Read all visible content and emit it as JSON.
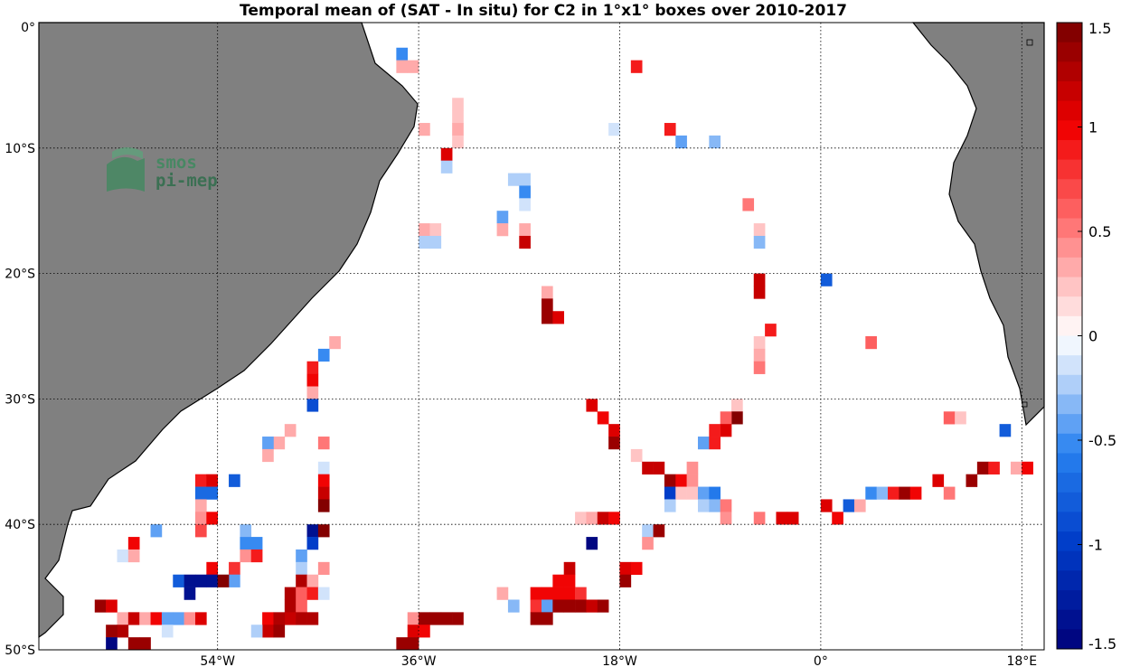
{
  "chart_data": {
    "type": "heatmap",
    "title": "Temporal mean of (SAT - In situ) for C2 in 1°x1° boxes over 2010-2017",
    "xlim": [
      -70,
      20
    ],
    "ylim": [
      -50,
      0
    ],
    "x_ticks": [
      {
        "value": -54,
        "label": "54°W"
      },
      {
        "value": -36,
        "label": "36°W"
      },
      {
        "value": -18,
        "label": "18°W"
      },
      {
        "value": 0,
        "label": "0°"
      },
      {
        "value": 18,
        "label": "18°E"
      }
    ],
    "y_ticks": [
      {
        "value": 0,
        "label": "0°"
      },
      {
        "value": -10,
        "label": "10°S"
      },
      {
        "value": -20,
        "label": "20°S"
      },
      {
        "value": -30,
        "label": "30°S"
      },
      {
        "value": -40,
        "label": "40°S"
      },
      {
        "value": -50,
        "label": "50°S"
      }
    ],
    "grid": true,
    "colorbar": {
      "range": [
        -1.5,
        1.5
      ],
      "levels": 32,
      "tick_values": [
        1.5,
        1,
        0.5,
        0,
        -0.5,
        -1,
        -1.5
      ],
      "tick_labels": [
        "1.5",
        "1",
        "0.5",
        "0",
        "-0.5",
        "-1",
        "-1.5"
      ],
      "negative_color": "#00007a",
      "positive_color": "#780000",
      "neutral_color": "#ffffff"
    },
    "land_color": "#808080",
    "cell_size_deg": 1,
    "cells": [
      [
        -37.5,
        -2.5,
        -0.5
      ],
      [
        -37.5,
        -3.5,
        0.3
      ],
      [
        -36.5,
        -3.5,
        0.3
      ],
      [
        -16.5,
        -3.5,
        0.9
      ],
      [
        -32.5,
        -6.5,
        0.2
      ],
      [
        -32.5,
        -7.5,
        0.2
      ],
      [
        -35.5,
        -8.5,
        0.3
      ],
      [
        -32.5,
        -8.5,
        0.3
      ],
      [
        -32.5,
        -9.5,
        0.2
      ],
      [
        -18.5,
        -8.5,
        -0.1
      ],
      [
        -13.5,
        -8.5,
        0.9
      ],
      [
        -12.5,
        -9.5,
        -0.4
      ],
      [
        -9.5,
        -9.5,
        -0.3
      ],
      [
        -33.5,
        -10.5,
        1.1
      ],
      [
        -33.5,
        -11.5,
        -0.2
      ],
      [
        -27.5,
        -12.5,
        -0.2
      ],
      [
        -26.5,
        -12.5,
        -0.2
      ],
      [
        -26.5,
        -13.5,
        -0.5
      ],
      [
        -26.5,
        -14.5,
        -0.1
      ],
      [
        -28.5,
        -15.5,
        -0.4
      ],
      [
        -28.5,
        -16.5,
        0.3
      ],
      [
        -26.5,
        -16.5,
        0.3
      ],
      [
        -26.5,
        -17.5,
        1.2
      ],
      [
        -35.5,
        -16.5,
        0.3
      ],
      [
        -34.5,
        -16.5,
        0.2
      ],
      [
        -35.5,
        -17.5,
        -0.2
      ],
      [
        -34.5,
        -17.5,
        -0.2
      ],
      [
        -6.5,
        -14.5,
        0.5
      ],
      [
        -5.5,
        -16.5,
        0.2
      ],
      [
        -5.5,
        -17.5,
        -0.3
      ],
      [
        -5.5,
        -20.5,
        1.2
      ],
      [
        -5.5,
        -21.5,
        1.2
      ],
      [
        0.5,
        -20.5,
        -0.8
      ],
      [
        -24.5,
        -21.5,
        0.3
      ],
      [
        -24.5,
        -22.5,
        1.4
      ],
      [
        -24.5,
        -23.5,
        1.4
      ],
      [
        -23.5,
        -23.5,
        1.1
      ],
      [
        -4.5,
        -24.5,
        0.9
      ],
      [
        -5.5,
        -25.5,
        0.2
      ],
      [
        -5.5,
        -26.5,
        0.3
      ],
      [
        -5.5,
        -27.5,
        0.5
      ],
      [
        4.5,
        -25.5,
        0.6
      ],
      [
        -43.5,
        -25.5,
        0.3
      ],
      [
        -44.5,
        -26.5,
        -0.5
      ],
      [
        -45.5,
        -27.5,
        0.9
      ],
      [
        -45.5,
        -28.5,
        1.0
      ],
      [
        -45.5,
        -29.5,
        0.3
      ],
      [
        -45.5,
        -30.5,
        -0.9
      ],
      [
        -20.5,
        -30.5,
        1.1
      ],
      [
        -19.5,
        -31.5,
        1.0
      ],
      [
        -18.5,
        -32.5,
        1.1
      ],
      [
        -18.5,
        -33.5,
        1.4
      ],
      [
        -7.5,
        -30.5,
        0.2
      ],
      [
        -7.5,
        -31.5,
        1.5
      ],
      [
        -8.5,
        -31.5,
        0.6
      ],
      [
        -8.5,
        -32.5,
        1.1
      ],
      [
        -9.5,
        -32.5,
        0.9
      ],
      [
        -10.5,
        -33.5,
        -0.4
      ],
      [
        -9.5,
        -33.5,
        0.9
      ],
      [
        -47.5,
        -32.5,
        0.3
      ],
      [
        -48.5,
        -33.5,
        0.3
      ],
      [
        -49.5,
        -33.5,
        -0.4
      ],
      [
        -49.5,
        -34.5,
        0.3
      ],
      [
        -44.5,
        -33.5,
        0.5
      ],
      [
        -44.5,
        -35.5,
        -0.1
      ],
      [
        -44.5,
        -36.5,
        1.0
      ],
      [
        -44.5,
        -37.5,
        1.2
      ],
      [
        -44.5,
        -38.5,
        1.5
      ],
      [
        11.5,
        -31.5,
        0.6
      ],
      [
        12.5,
        -31.5,
        0.2
      ],
      [
        16.5,
        -32.5,
        -0.8
      ],
      [
        -16.5,
        -34.5,
        0.2
      ],
      [
        -15.5,
        -35.5,
        1.2
      ],
      [
        -14.5,
        -35.5,
        1.2
      ],
      [
        14.5,
        -35.5,
        1.4
      ],
      [
        15.5,
        -35.5,
        0.9
      ],
      [
        17.5,
        -35.5,
        0.3
      ],
      [
        18.5,
        -35.5,
        1.0
      ],
      [
        -13.5,
        -36.5,
        1.4
      ],
      [
        -12.5,
        -36.5,
        1.0
      ],
      [
        -11.5,
        -35.5,
        0.4
      ],
      [
        -11.5,
        -36.5,
        0.4
      ],
      [
        -13.5,
        -37.5,
        -1.0
      ],
      [
        -13.5,
        -38.5,
        -0.2
      ],
      [
        -12.5,
        -37.5,
        0.2
      ],
      [
        -11.5,
        -37.5,
        0.2
      ],
      [
        -10.5,
        -37.5,
        -0.4
      ],
      [
        -9.5,
        -37.5,
        -0.6
      ],
      [
        -10.5,
        -38.5,
        -0.2
      ],
      [
        -9.5,
        -38.5,
        -0.3
      ],
      [
        -8.5,
        -38.5,
        0.5
      ],
      [
        -8.5,
        -39.5,
        0.4
      ],
      [
        10.5,
        -36.5,
        1.1
      ],
      [
        13.5,
        -36.5,
        1.4
      ],
      [
        4.5,
        -37.5,
        -0.5
      ],
      [
        5.5,
        -37.5,
        -0.3
      ],
      [
        6.5,
        -37.5,
        0.9
      ],
      [
        7.5,
        -37.5,
        1.4
      ],
      [
        8.5,
        -37.5,
        1.0
      ],
      [
        11.5,
        -37.5,
        0.5
      ],
      [
        0.5,
        -38.5,
        1.1
      ],
      [
        1.5,
        -39.5,
        1.0
      ],
      [
        2.5,
        -38.5,
        -0.8
      ],
      [
        3.5,
        -38.5,
        0.3
      ],
      [
        -5.5,
        -39.5,
        0.5
      ],
      [
        -3.5,
        -39.5,
        1.1
      ],
      [
        -2.5,
        -39.5,
        1.1
      ],
      [
        -21.5,
        -39.5,
        0.2
      ],
      [
        -20.5,
        -39.5,
        0.3
      ],
      [
        -19.5,
        -39.5,
        1.2
      ],
      [
        -18.5,
        -39.5,
        1.0
      ],
      [
        -15.5,
        -40.5,
        -0.2
      ],
      [
        -14.5,
        -40.5,
        1.4
      ],
      [
        -15.5,
        -41.5,
        0.4
      ],
      [
        -20.5,
        -41.5,
        -1.5
      ],
      [
        -55.5,
        -36.5,
        0.9
      ],
      [
        -55.5,
        -37.5,
        -0.7
      ],
      [
        -54.5,
        -36.5,
        1.1
      ],
      [
        -54.5,
        -37.5,
        -0.7
      ],
      [
        -52.5,
        -36.5,
        -0.8
      ],
      [
        -55.5,
        -38.5,
        0.3
      ],
      [
        -55.5,
        -39.5,
        0.4
      ],
      [
        -54.5,
        -39.5,
        1.0
      ],
      [
        -55.5,
        -40.5,
        0.7
      ],
      [
        -59.5,
        -40.5,
        -0.4
      ],
      [
        -61.5,
        -41.5,
        1.0
      ],
      [
        -51.5,
        -40.5,
        -0.3
      ],
      [
        -51.5,
        -41.5,
        -0.5
      ],
      [
        -50.5,
        -41.5,
        -0.5
      ],
      [
        -51.5,
        -42.5,
        0.4
      ],
      [
        -50.5,
        -42.5,
        0.9
      ],
      [
        -62.5,
        -42.5,
        -0.1
      ],
      [
        -61.5,
        -42.5,
        0.3
      ],
      [
        -45.5,
        -40.5,
        -1.4
      ],
      [
        -45.5,
        -41.5,
        -1.0
      ],
      [
        -44.5,
        -40.5,
        1.5
      ],
      [
        -46.5,
        -42.5,
        -0.4
      ],
      [
        -46.5,
        -43.5,
        -0.2
      ],
      [
        -44.5,
        -43.5,
        0.4
      ],
      [
        -54.5,
        -43.5,
        1.0
      ],
      [
        -52.5,
        -43.5,
        0.8
      ],
      [
        -52.5,
        -44.5,
        -0.4
      ],
      [
        -57.5,
        -44.5,
        -0.8
      ],
      [
        -56.5,
        -44.5,
        -1.4
      ],
      [
        -55.5,
        -44.5,
        -1.4
      ],
      [
        -54.5,
        -44.5,
        -1.4
      ],
      [
        -53.5,
        -44.5,
        1.5
      ],
      [
        -56.5,
        -45.5,
        -1.4
      ],
      [
        -46.5,
        -44.5,
        1.3
      ],
      [
        -45.5,
        -44.5,
        0.3
      ],
      [
        -47.5,
        -45.5,
        1.3
      ],
      [
        -46.5,
        -45.5,
        0.6
      ],
      [
        -45.5,
        -45.5,
        0.9
      ],
      [
        -44.5,
        -45.5,
        -0.1
      ],
      [
        -47.5,
        -46.5,
        1.3
      ],
      [
        -46.5,
        -46.5,
        0.6
      ],
      [
        -47.5,
        -47.5,
        1.2
      ],
      [
        -46.5,
        -47.5,
        1.3
      ],
      [
        -45.5,
        -47.5,
        1.3
      ],
      [
        -49.5,
        -47.5,
        1.0
      ],
      [
        -48.5,
        -47.5,
        1.3
      ],
      [
        -49.5,
        -48.5,
        1.2
      ],
      [
        -48.5,
        -48.5,
        1.4
      ],
      [
        -50.5,
        -48.5,
        -0.2
      ],
      [
        -64.5,
        -46.5,
        1.4
      ],
      [
        -63.5,
        -46.5,
        1.1
      ],
      [
        -62.5,
        -47.5,
        0.3
      ],
      [
        -61.5,
        -47.5,
        1.2
      ],
      [
        -60.5,
        -47.5,
        0.3
      ],
      [
        -59.5,
        -47.5,
        1.0
      ],
      [
        -58.5,
        -47.5,
        -0.4
      ],
      [
        -57.5,
        -47.5,
        -0.4
      ],
      [
        -56.5,
        -47.5,
        0.4
      ],
      [
        -55.5,
        -47.5,
        1.1
      ],
      [
        -62.5,
        -48.5,
        1.3
      ],
      [
        -63.5,
        -48.5,
        1.4
      ],
      [
        -58.5,
        -48.5,
        -0.1
      ],
      [
        -63.5,
        -49.5,
        -1.5
      ],
      [
        -61.5,
        -49.5,
        1.4
      ],
      [
        -60.5,
        -49.5,
        1.4
      ],
      [
        -36.5,
        -47.5,
        0.4
      ],
      [
        -35.5,
        -47.5,
        1.4
      ],
      [
        -34.5,
        -47.5,
        1.4
      ],
      [
        -33.5,
        -47.5,
        1.4
      ],
      [
        -32.5,
        -47.5,
        1.4
      ],
      [
        -36.5,
        -48.5,
        1.1
      ],
      [
        -35.5,
        -48.5,
        1.0
      ],
      [
        -37.5,
        -49.5,
        1.4
      ],
      [
        -36.5,
        -49.5,
        1.4
      ],
      [
        -28.5,
        -45.5,
        0.3
      ],
      [
        -27.5,
        -46.5,
        -0.3
      ],
      [
        -25.5,
        -45.5,
        1.0
      ],
      [
        -24.5,
        -45.5,
        1.0
      ],
      [
        -23.5,
        -45.5,
        1.0
      ],
      [
        -22.5,
        -45.5,
        1.0
      ],
      [
        -21.5,
        -45.5,
        0.8
      ],
      [
        -22.5,
        -43.5,
        1.2
      ],
      [
        -23.5,
        -44.5,
        1.0
      ],
      [
        -22.5,
        -44.5,
        1.0
      ],
      [
        -25.5,
        -46.5,
        0.8
      ],
      [
        -24.5,
        -46.5,
        -0.4
      ],
      [
        -23.5,
        -46.5,
        1.4
      ],
      [
        -22.5,
        -46.5,
        1.4
      ],
      [
        -21.5,
        -46.5,
        1.4
      ],
      [
        -20.5,
        -46.5,
        1.2
      ],
      [
        -19.5,
        -46.5,
        1.4
      ],
      [
        -25.5,
        -47.5,
        1.4
      ],
      [
        -24.5,
        -47.5,
        1.4
      ],
      [
        -17.5,
        -43.5,
        1.1
      ],
      [
        -16.5,
        -43.5,
        1.0
      ],
      [
        -17.5,
        -44.5,
        1.4
      ]
    ]
  }
}
